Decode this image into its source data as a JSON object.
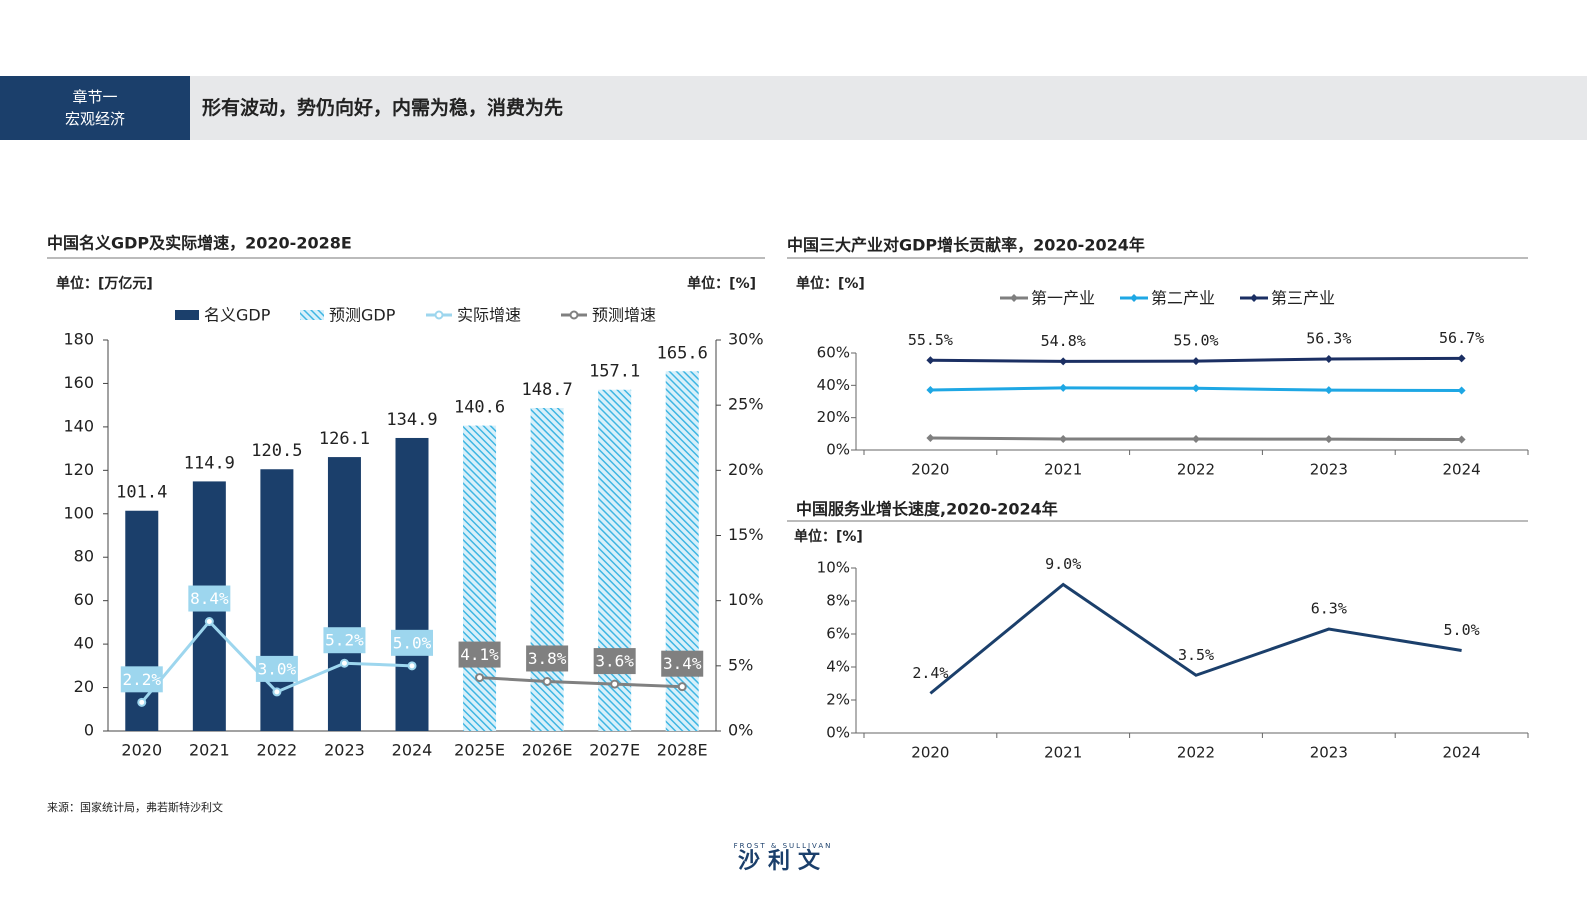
{
  "header": {
    "section_label": "章节一",
    "section_name": "宏观经济",
    "title": "形有波动，势仍向好，内需为稳，消费为先"
  },
  "source": "来源：国家统计局，弗若斯特沙利文",
  "logo": {
    "top": "FROST & SULLIVAN",
    "main": "沙利文"
  },
  "chart_data": [
    {
      "type": "bar",
      "title": "中国名义GDP及实际增速，2020-2028E",
      "unit": "单位：[万亿元]",
      "unit2": "单位：[%]",
      "categories": [
        "2020",
        "2021",
        "2022",
        "2023",
        "2024",
        "2025E",
        "2026E",
        "2027E",
        "2028E"
      ],
      "series": [
        {
          "name": "名义GDP",
          "type": "bar",
          "color": "#1b3f6b",
          "values": [
            101.4,
            114.9,
            120.5,
            126.1,
            134.9,
            null,
            null,
            null,
            null
          ]
        },
        {
          "name": "预测GDP",
          "type": "bar",
          "color": "#5bc0e6",
          "pattern": "hatch",
          "values": [
            null,
            null,
            null,
            null,
            null,
            140.6,
            148.7,
            157.1,
            165.6
          ]
        },
        {
          "name": "实际增速",
          "type": "line",
          "axis": "y2",
          "color": "#9dd6ee",
          "values": [
            2.2,
            8.4,
            3.0,
            5.2,
            5.0,
            null,
            null,
            null,
            null
          ],
          "value_labels": [
            "2.2%",
            "8.4%",
            "3.0%",
            "5.2%",
            "5.0%",
            null,
            null,
            null,
            null
          ]
        },
        {
          "name": "预测增速",
          "type": "line",
          "axis": "y2",
          "color": "#808080",
          "values": [
            null,
            null,
            null,
            null,
            null,
            4.1,
            3.8,
            3.6,
            3.4
          ],
          "value_labels": [
            null,
            null,
            null,
            null,
            null,
            "4.1%",
            "3.8%",
            "3.6%",
            "3.4%"
          ]
        }
      ],
      "ylim": [
        0,
        180
      ],
      "yticks": [
        0,
        20,
        40,
        60,
        80,
        100,
        120,
        140,
        160,
        180
      ],
      "y2lim": [
        0,
        30
      ],
      "y2ticks": [
        {
          "value": 0,
          "label": "0%"
        },
        {
          "value": 5,
          "label": "5%"
        },
        {
          "value": 10,
          "label": "10%"
        },
        {
          "value": 15,
          "label": "15%"
        },
        {
          "value": 20,
          "label": "20%"
        },
        {
          "value": 25,
          "label": "25%"
        },
        {
          "value": 30,
          "label": "30%"
        }
      ]
    },
    {
      "type": "line",
      "title": "中国三大产业对GDP增长贡献率，2020-2024年",
      "unit": "单位：[%]",
      "categories": [
        "2020",
        "2021",
        "2022",
        "2023",
        "2024"
      ],
      "series": [
        {
          "name": "第一产业",
          "color": "#7f7f7f",
          "marker": "diamond",
          "values": [
            7.4,
            6.8,
            6.8,
            6.7,
            6.5
          ]
        },
        {
          "name": "第二产业",
          "color": "#1ea7e4",
          "marker": "diamond",
          "values": [
            37.1,
            38.4,
            38.2,
            37.0,
            36.8
          ]
        },
        {
          "name": "第三产业",
          "color": "#1b2f63",
          "marker": "diamond",
          "values": [
            55.5,
            54.8,
            55.0,
            56.3,
            56.7
          ],
          "value_labels": [
            "55.5%",
            "54.8%",
            "55.0%",
            "56.3%",
            "56.7%"
          ]
        }
      ],
      "ylim": [
        0,
        60
      ],
      "yticks": [
        {
          "value": 0,
          "label": "0%"
        },
        {
          "value": 20,
          "label": "20%"
        },
        {
          "value": 40,
          "label": "40%"
        },
        {
          "value": 60,
          "label": "60%"
        }
      ]
    },
    {
      "type": "line",
      "title": "中国服务业增长速度,2020-2024年",
      "unit": "单位：[%]",
      "categories": [
        "2020",
        "2021",
        "2022",
        "2023",
        "2024"
      ],
      "series": [
        {
          "name": "服务业增长速度",
          "color": "#1b3f6b",
          "values": [
            2.4,
            9.0,
            3.5,
            6.3,
            5.0
          ],
          "value_labels": [
            "2.4%",
            "9.0%",
            "3.5%",
            "6.3%",
            "5.0%"
          ]
        }
      ],
      "ylim": [
        0,
        10
      ],
      "yticks": [
        {
          "value": 0,
          "label": "0%"
        },
        {
          "value": 2,
          "label": "2%"
        },
        {
          "value": 4,
          "label": "4%"
        },
        {
          "value": 6,
          "label": "6%"
        },
        {
          "value": 8,
          "label": "8%"
        },
        {
          "value": 10,
          "label": "10%"
        }
      ]
    }
  ]
}
